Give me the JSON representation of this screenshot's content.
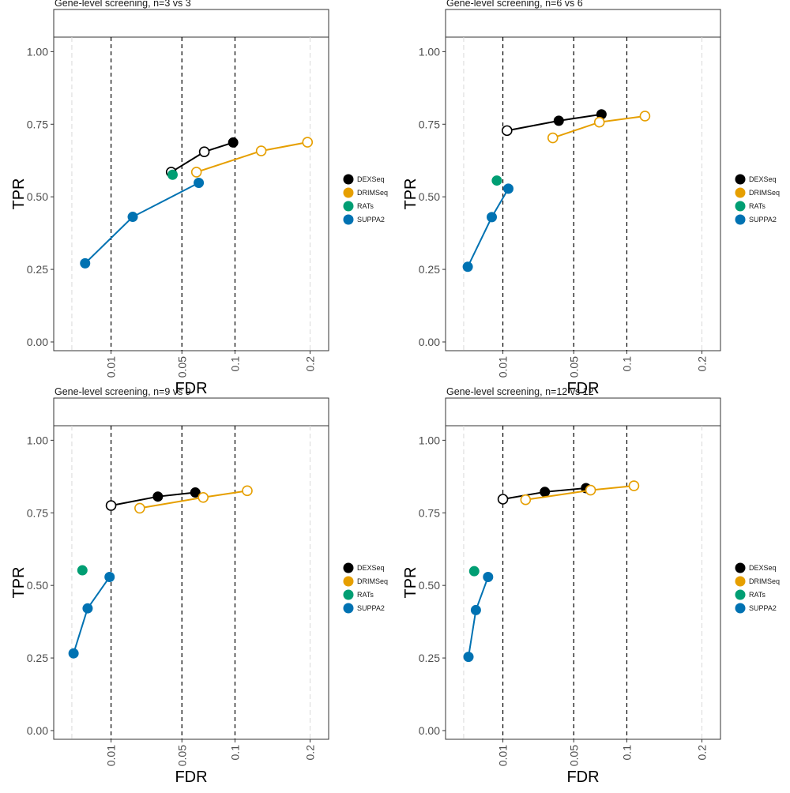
{
  "chart_data": [
    {
      "type": "line",
      "title": "Gene-level screening, n=3 vs 3",
      "xlabel": "FDR",
      "ylabel": "TPR",
      "x_scale": "sqrt",
      "xlim": [
        0,
        0.23
      ],
      "ylim": [
        -0.03,
        1.05
      ],
      "x_ticks": [
        0.01,
        0.05,
        0.1,
        0.2
      ],
      "x_tick_labels": [
        "0.01",
        "0.05",
        "0.1",
        "0.2"
      ],
      "y_ticks": [
        0,
        0.25,
        0.5,
        0.75,
        1
      ],
      "y_tick_labels": [
        "0.00",
        "0.25",
        "0.50",
        "0.75",
        "1.00"
      ],
      "vlines_dashed": [
        0.01,
        0.05,
        0.1
      ],
      "vlines_light": [
        0.001,
        0.2
      ],
      "grid": false,
      "legend_position": "right",
      "series": [
        {
          "name": "DEXSeq",
          "color": "#000000",
          "points": [
            {
              "x": 0.042,
              "y": 0.585,
              "filled": false
            },
            {
              "x": 0.069,
              "y": 0.655,
              "filled": false
            },
            {
              "x": 0.098,
              "y": 0.687,
              "filled": true
            }
          ]
        },
        {
          "name": "DRIMSeq",
          "color": "#E69F00",
          "points": [
            {
              "x": 0.062,
              "y": 0.585,
              "filled": false
            },
            {
              "x": 0.131,
              "y": 0.658,
              "filled": false
            },
            {
              "x": 0.196,
              "y": 0.688,
              "filled": false
            }
          ]
        },
        {
          "name": "RATs",
          "color": "#009E73",
          "points": [
            {
              "x": 0.043,
              "y": 0.576,
              "filled": true
            }
          ]
        },
        {
          "name": "SUPPA2",
          "color": "#0072B2",
          "points": [
            {
              "x": 0.003,
              "y": 0.271,
              "filled": true
            },
            {
              "x": 0.019,
              "y": 0.431,
              "filled": true
            },
            {
              "x": 0.064,
              "y": 0.548,
              "filled": true
            }
          ]
        }
      ]
    },
    {
      "type": "line",
      "title": "Gene-level screening, n=6 vs 6",
      "xlabel": "FDR",
      "ylabel": "TPR",
      "x_scale": "sqrt",
      "xlim": [
        0,
        0.23
      ],
      "ylim": [
        -0.03,
        1.05
      ],
      "x_ticks": [
        0.01,
        0.05,
        0.1,
        0.2
      ],
      "x_tick_labels": [
        "0.01",
        "0.05",
        "0.1",
        "0.2"
      ],
      "y_ticks": [
        0,
        0.25,
        0.5,
        0.75,
        1
      ],
      "y_tick_labels": [
        "0.00",
        "0.25",
        "0.50",
        "0.75",
        "1.00"
      ],
      "vlines_dashed": [
        0.01,
        0.05,
        0.1
      ],
      "vlines_light": [
        0.001,
        0.2
      ],
      "grid": false,
      "legend_position": "right",
      "series": [
        {
          "name": "DEXSeq",
          "color": "#000000",
          "points": [
            {
              "x": 0.0115,
              "y": 0.728,
              "filled": false
            },
            {
              "x": 0.039,
              "y": 0.762,
              "filled": true
            },
            {
              "x": 0.074,
              "y": 0.784,
              "filled": true
            }
          ]
        },
        {
          "name": "DRIMSeq",
          "color": "#E69F00",
          "points": [
            {
              "x": 0.035,
              "y": 0.703,
              "filled": false
            },
            {
              "x": 0.072,
              "y": 0.757,
              "filled": false
            },
            {
              "x": 0.121,
              "y": 0.778,
              "filled": false
            }
          ]
        },
        {
          "name": "RATs",
          "color": "#009E73",
          "points": [
            {
              "x": 0.008,
              "y": 0.556,
              "filled": true
            }
          ]
        },
        {
          "name": "SUPPA2",
          "color": "#0072B2",
          "points": [
            {
              "x": 0.0015,
              "y": 0.259,
              "filled": true
            },
            {
              "x": 0.0065,
              "y": 0.43,
              "filled": true
            },
            {
              "x": 0.012,
              "y": 0.528,
              "filled": true
            }
          ]
        }
      ]
    },
    {
      "type": "line",
      "title": "Gene-level screening, n=9 vs 9",
      "xlabel": "FDR",
      "ylabel": "TPR",
      "x_scale": "sqrt",
      "xlim": [
        0,
        0.23
      ],
      "ylim": [
        -0.03,
        1.05
      ],
      "x_ticks": [
        0.01,
        0.05,
        0.1,
        0.2
      ],
      "x_tick_labels": [
        "0.01",
        "0.05",
        "0.1",
        "0.2"
      ],
      "y_ticks": [
        0,
        0.25,
        0.5,
        0.75,
        1
      ],
      "y_tick_labels": [
        "0.00",
        "0.25",
        "0.50",
        "0.75",
        "1.00"
      ],
      "vlines_dashed": [
        0.01,
        0.05,
        0.1
      ],
      "vlines_light": [
        0.001,
        0.2
      ],
      "grid": false,
      "legend_position": "right",
      "series": [
        {
          "name": "DEXSeq",
          "color": "#000000",
          "points": [
            {
              "x": 0.01,
              "y": 0.775,
              "filled": false
            },
            {
              "x": 0.033,
              "y": 0.806,
              "filled": true
            },
            {
              "x": 0.061,
              "y": 0.82,
              "filled": true
            }
          ]
        },
        {
          "name": "DRIMSeq",
          "color": "#E69F00",
          "points": [
            {
              "x": 0.0225,
              "y": 0.766,
              "filled": false
            },
            {
              "x": 0.068,
              "y": 0.803,
              "filled": false
            },
            {
              "x": 0.114,
              "y": 0.826,
              "filled": false
            }
          ]
        },
        {
          "name": "RATs",
          "color": "#009E73",
          "points": [
            {
              "x": 0.0025,
              "y": 0.552,
              "filled": true
            }
          ]
        },
        {
          "name": "SUPPA2",
          "color": "#0072B2",
          "points": [
            {
              "x": 0.0012,
              "y": 0.266,
              "filled": true
            },
            {
              "x": 0.0035,
              "y": 0.421,
              "filled": true
            },
            {
              "x": 0.0095,
              "y": 0.529,
              "filled": true
            }
          ]
        }
      ]
    },
    {
      "type": "line",
      "title": "Gene-level screening, n=12 vs 12",
      "xlabel": "FDR",
      "ylabel": "TPR",
      "x_scale": "sqrt",
      "xlim": [
        0,
        0.23
      ],
      "ylim": [
        -0.03,
        1.05
      ],
      "x_ticks": [
        0.01,
        0.05,
        0.1,
        0.2
      ],
      "x_tick_labels": [
        "0.01",
        "0.05",
        "0.1",
        "0.2"
      ],
      "y_ticks": [
        0,
        0.25,
        0.5,
        0.75,
        1
      ],
      "y_tick_labels": [
        "0.00",
        "0.25",
        "0.50",
        "0.75",
        "1.00"
      ],
      "vlines_dashed": [
        0.01,
        0.05,
        0.1
      ],
      "vlines_light": [
        0.001,
        0.2
      ],
      "grid": false,
      "legend_position": "right",
      "series": [
        {
          "name": "DEXSeq",
          "color": "#000000",
          "points": [
            {
              "x": 0.01,
              "y": 0.797,
              "filled": false
            },
            {
              "x": 0.03,
              "y": 0.822,
              "filled": true
            },
            {
              "x": 0.06,
              "y": 0.835,
              "filled": true
            }
          ]
        },
        {
          "name": "DRIMSeq",
          "color": "#E69F00",
          "points": [
            {
              "x": 0.0195,
              "y": 0.795,
              "filled": false
            },
            {
              "x": 0.064,
              "y": 0.828,
              "filled": false
            },
            {
              "x": 0.108,
              "y": 0.843,
              "filled": false
            }
          ]
        },
        {
          "name": "RATs",
          "color": "#009E73",
          "points": [
            {
              "x": 0.0025,
              "y": 0.549,
              "filled": true
            }
          ]
        },
        {
          "name": "SUPPA2",
          "color": "#0072B2",
          "points": [
            {
              "x": 0.0016,
              "y": 0.254,
              "filled": true
            },
            {
              "x": 0.0028,
              "y": 0.415,
              "filled": true
            },
            {
              "x": 0.0055,
              "y": 0.529,
              "filled": true
            }
          ]
        }
      ]
    }
  ]
}
